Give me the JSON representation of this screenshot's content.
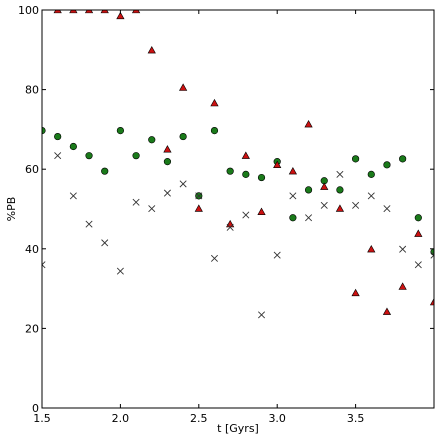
{
  "chart_data": {
    "type": "scatter",
    "title": "",
    "xlabel": "t [Gyrs]",
    "ylabel": "%PB",
    "xlim": [
      1.5,
      4.0
    ],
    "ylim": [
      0,
      100
    ],
    "x_ticks": [
      "1.5",
      "2.0",
      "2.5",
      "3.0",
      "3.5"
    ],
    "x_tick_values": [
      1.5,
      2.0,
      2.5,
      3.0,
      3.5
    ],
    "y_ticks": [
      "0",
      "20",
      "40",
      "60",
      "80",
      "100"
    ],
    "y_tick_values": [
      0,
      20,
      40,
      60,
      80,
      100
    ],
    "grid": false,
    "legend": false,
    "colors": {
      "circles": "#1a7a1a",
      "triangles": "#cc1111",
      "crosses": "#333333",
      "axes": "#000000"
    },
    "series": [
      {
        "marker": "circle",
        "points": [
          [
            1.5,
            69.7
          ],
          [
            1.6,
            68.2
          ],
          [
            1.7,
            65.7
          ],
          [
            1.8,
            63.4
          ],
          [
            1.9,
            59.5
          ],
          [
            2.0,
            69.7
          ],
          [
            2.1,
            63.4
          ],
          [
            2.2,
            67.4
          ],
          [
            2.3,
            61.9
          ],
          [
            2.4,
            68.2
          ],
          [
            2.5,
            53.3
          ],
          [
            2.6,
            69.7
          ],
          [
            2.7,
            59.5
          ],
          [
            2.8,
            58.7
          ],
          [
            2.9,
            57.9
          ],
          [
            3.0,
            61.9
          ],
          [
            3.1,
            47.8
          ],
          [
            3.2,
            54.8
          ],
          [
            3.3,
            57.1
          ],
          [
            3.4,
            54.8
          ],
          [
            3.5,
            62.6
          ],
          [
            3.6,
            58.7
          ],
          [
            3.7,
            61.1
          ],
          [
            3.8,
            62.6
          ],
          [
            3.9,
            47.8
          ],
          [
            4.0,
            39.2
          ]
        ]
      },
      {
        "marker": "triangle",
        "points": [
          [
            1.6,
            100
          ],
          [
            1.7,
            100
          ],
          [
            1.8,
            100
          ],
          [
            1.9,
            100
          ],
          [
            2.0,
            98.5
          ],
          [
            2.1,
            100
          ],
          [
            2.2,
            89.9
          ],
          [
            2.3,
            65.0
          ],
          [
            2.4,
            80.5
          ],
          [
            2.5,
            50.1
          ],
          [
            2.6,
            76.6
          ],
          [
            2.7,
            46.2
          ],
          [
            2.8,
            63.4
          ],
          [
            2.9,
            49.3
          ],
          [
            3.0,
            61.1
          ],
          [
            3.1,
            59.5
          ],
          [
            3.2,
            71.3
          ],
          [
            3.3,
            55.6
          ],
          [
            3.4,
            50.1
          ],
          [
            3.5,
            28.9
          ],
          [
            3.6,
            39.9
          ],
          [
            3.7,
            24.2
          ],
          [
            3.8,
            30.5
          ],
          [
            3.9,
            43.8
          ],
          [
            4.0,
            26.6
          ]
        ]
      },
      {
        "marker": "x",
        "points": [
          [
            1.5,
            36.0
          ],
          [
            1.6,
            63.4
          ],
          [
            1.7,
            53.3
          ],
          [
            1.8,
            46.2
          ],
          [
            1.9,
            41.5
          ],
          [
            2.0,
            34.4
          ],
          [
            2.1,
            51.7
          ],
          [
            2.2,
            50.1
          ],
          [
            2.3,
            54.0
          ],
          [
            2.4,
            56.3
          ],
          [
            2.5,
            53.3
          ],
          [
            2.6,
            37.6
          ],
          [
            2.7,
            45.4
          ],
          [
            2.8,
            48.5
          ],
          [
            2.9,
            23.4
          ],
          [
            3.0,
            38.4
          ],
          [
            3.1,
            53.3
          ],
          [
            3.2,
            47.8
          ],
          [
            3.3,
            50.9
          ],
          [
            3.4,
            58.7
          ],
          [
            3.5,
            50.9
          ],
          [
            3.6,
            53.3
          ],
          [
            3.7,
            50.1
          ],
          [
            3.8,
            39.9
          ],
          [
            3.9,
            36.0
          ],
          [
            4.0,
            38.4
          ]
        ]
      }
    ]
  }
}
